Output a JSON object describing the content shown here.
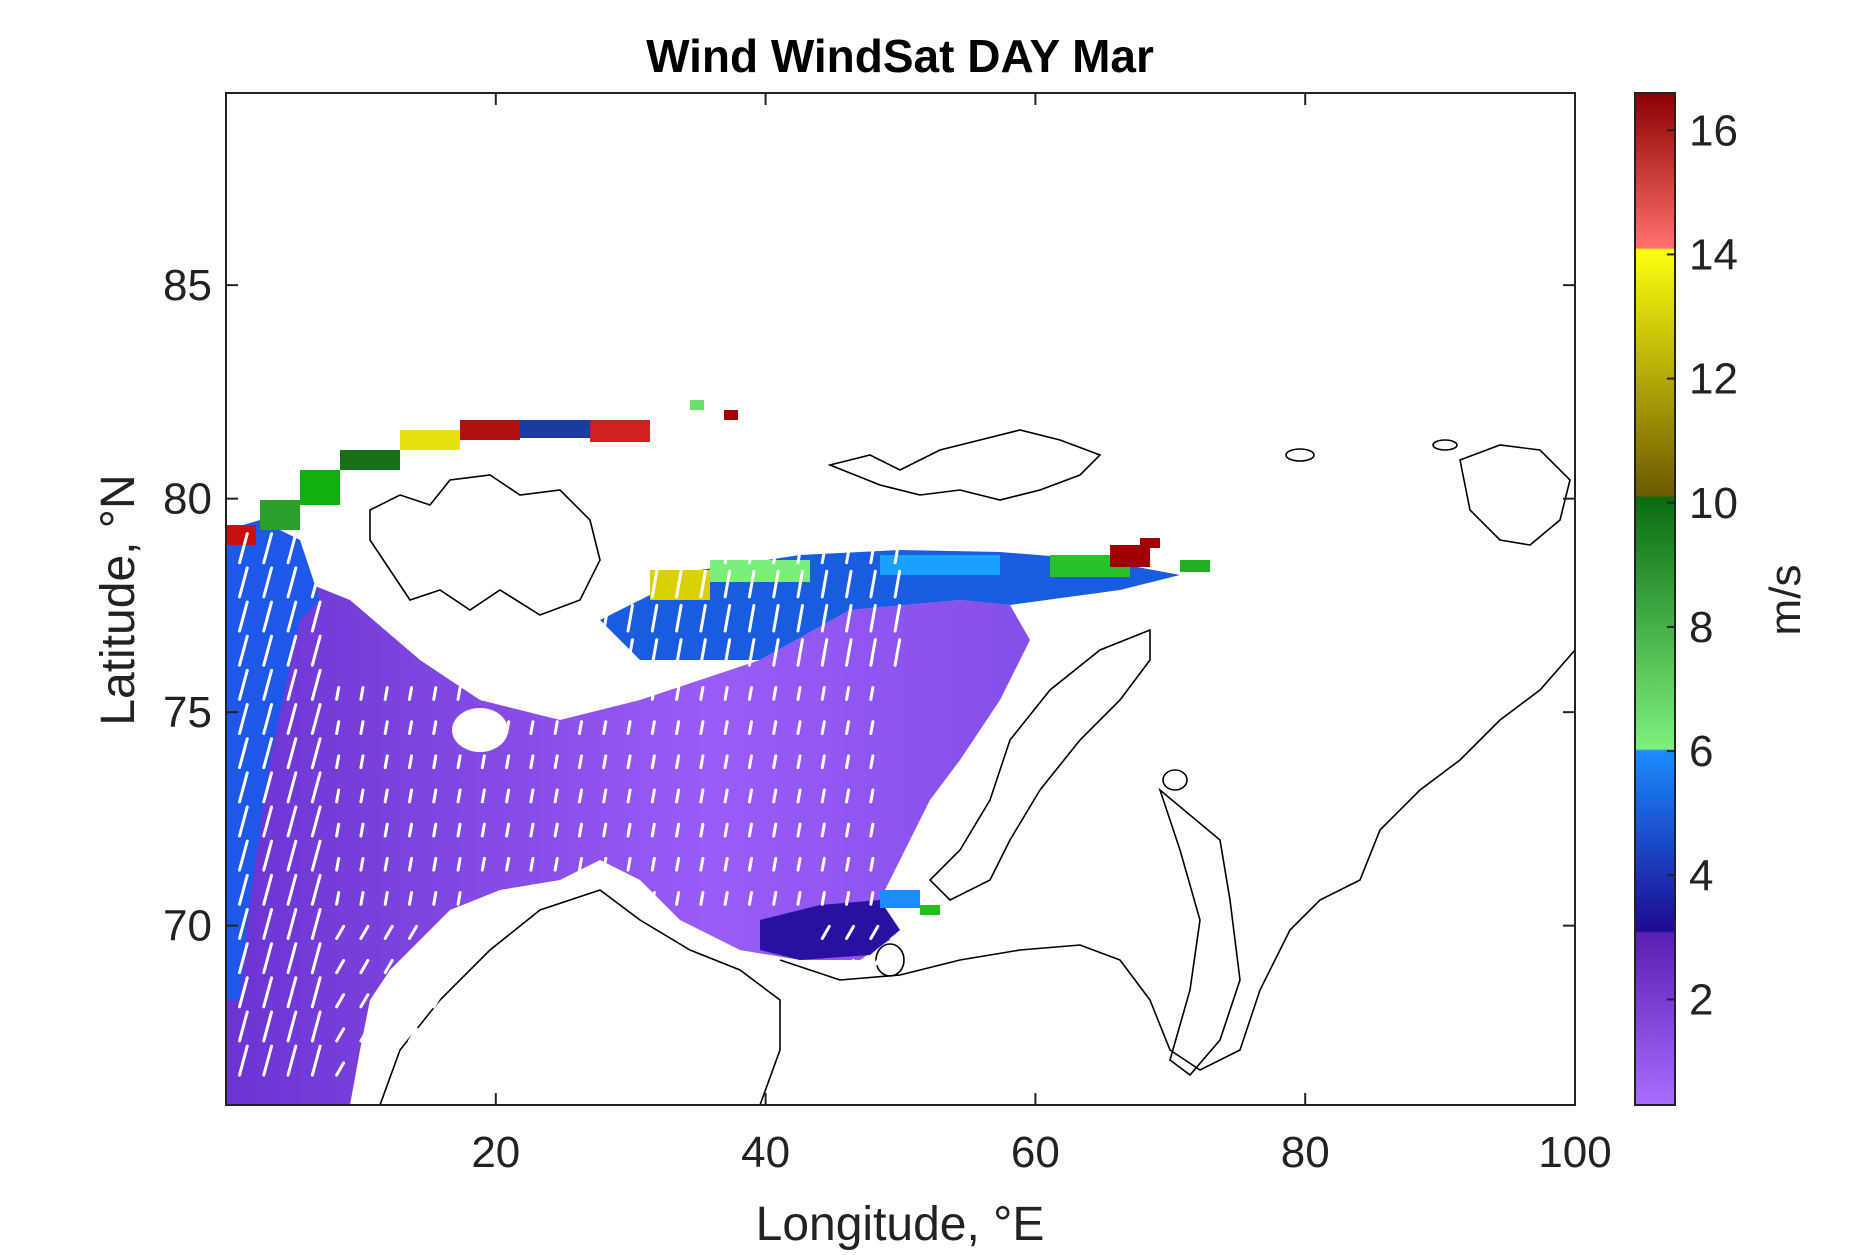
{
  "chart_data": {
    "type": "heatmap",
    "title": "Wind WindSat DAY Mar",
    "xlabel": "Longitude, °E",
    "ylabel": "Latitude, °N",
    "xlim": [
      0,
      100
    ],
    "ylim": [
      65.8,
      89.5
    ],
    "xticks": [
      20,
      40,
      60,
      80,
      100
    ],
    "yticks": [
      70,
      75,
      80,
      85
    ],
    "colorbar": {
      "label": "m/s",
      "range": [
        0.3,
        16.6
      ],
      "ticks": [
        2,
        4,
        6,
        8,
        10,
        12,
        14,
        16
      ],
      "bands": [
        {
          "from": 0.3,
          "to": 3.1,
          "color_low": "#a86cff",
          "color_high": "#5a1fb0"
        },
        {
          "from": 3.1,
          "to": 6.2,
          "color_low": "#1c0a90",
          "color_high": "#1a8cff"
        },
        {
          "from": 6.2,
          "to": 10.2,
          "color_low": "#7ef07e",
          "color_high": "#0a6b10"
        },
        {
          "from": 10.2,
          "to": 14.2,
          "color_low": "#6b5a00",
          "color_high": "#ffff10"
        },
        {
          "from": 14.2,
          "to": 16.6,
          "color_low": "#ff7070",
          "color_high": "#8a0000"
        }
      ]
    },
    "field_description_regions": [
      {
        "name": "open-sea",
        "lon": [
          0,
          52
        ],
        "lat": [
          66,
          78
        ],
        "speed_ms": 1.5
      },
      {
        "name": "west-strip",
        "lon": [
          0,
          5
        ],
        "lat": [
          66,
          79
        ],
        "speed_ms": 4.5
      },
      {
        "name": "ice-edge-north",
        "lon": [
          28,
          72
        ],
        "lat": [
          77,
          79
        ],
        "speed_ms": 5.5
      }
    ],
    "grid": false
  }
}
